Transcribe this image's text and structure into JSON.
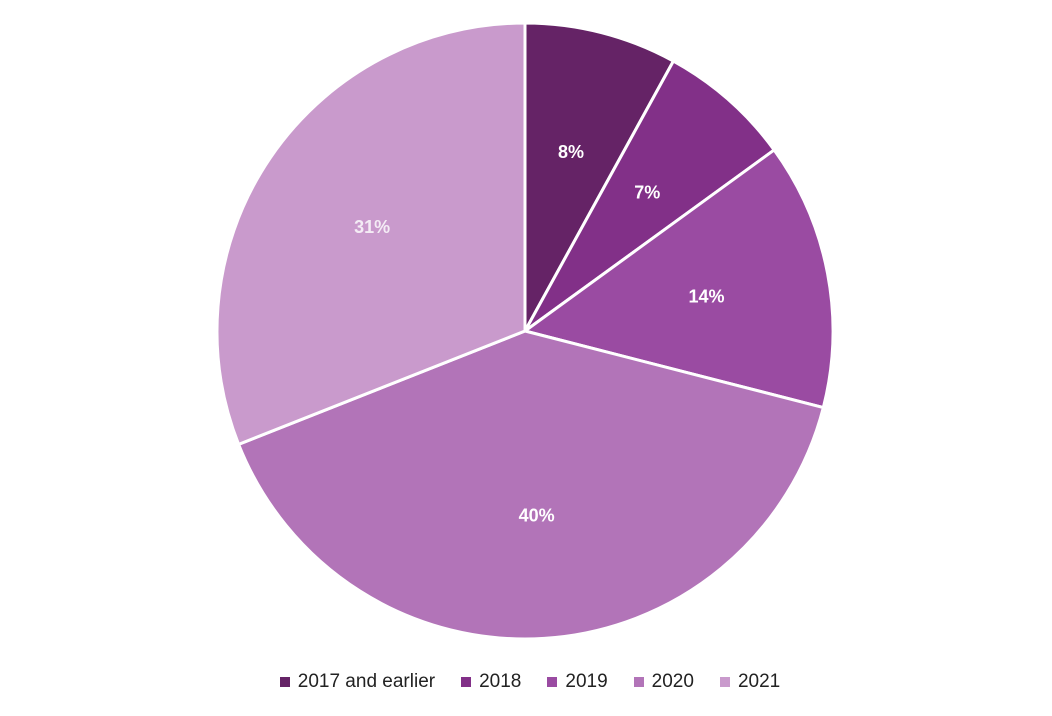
{
  "chart_data": {
    "type": "pie",
    "categories": [
      "2017 and earlier",
      "2018",
      "2019",
      "2020",
      "2021"
    ],
    "values": [
      8,
      7,
      14,
      40,
      31
    ],
    "data_labels": [
      "8%",
      "7%",
      "14%",
      "40%",
      "31%"
    ],
    "colors": [
      "#652366",
      "#823088",
      "#9a4ba2",
      "#b274b8",
      "#c99acc"
    ],
    "label_colors": [
      "#ffffff",
      "#ffffff",
      "#ffffff",
      "#ffffff",
      "#f4ecf5"
    ],
    "legend_placement": "bottom",
    "start_angle": "12 o'clock",
    "direction": "clockwise"
  }
}
